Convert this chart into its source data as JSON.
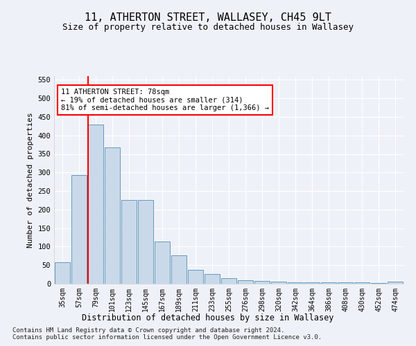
{
  "title1": "11, ATHERTON STREET, WALLASEY, CH45 9LT",
  "title2": "Size of property relative to detached houses in Wallasey",
  "xlabel": "Distribution of detached houses by size in Wallasey",
  "ylabel": "Number of detached properties",
  "categories": [
    "35sqm",
    "57sqm",
    "79sqm",
    "101sqm",
    "123sqm",
    "145sqm",
    "167sqm",
    "189sqm",
    "211sqm",
    "233sqm",
    "255sqm",
    "276sqm",
    "298sqm",
    "320sqm",
    "342sqm",
    "364sqm",
    "386sqm",
    "408sqm",
    "430sqm",
    "452sqm",
    "474sqm"
  ],
  "values": [
    57,
    293,
    430,
    368,
    225,
    225,
    113,
    76,
    38,
    27,
    15,
    10,
    8,
    5,
    3,
    3,
    3,
    3,
    3,
    2,
    5
  ],
  "bar_color": "#c9d9ea",
  "bar_edge_color": "#6699bb",
  "annotation_text": "11 ATHERTON STREET: 78sqm\n← 19% of detached houses are smaller (314)\n81% of semi-detached houses are larger (1,366) →",
  "ylim": [
    0,
    560
  ],
  "yticks": [
    0,
    50,
    100,
    150,
    200,
    250,
    300,
    350,
    400,
    450,
    500,
    550
  ],
  "background_color": "#eef2f8",
  "grid_color": "#ffffff",
  "footnote1": "Contains HM Land Registry data © Crown copyright and database right 2024.",
  "footnote2": "Contains public sector information licensed under the Open Government Licence v3.0."
}
